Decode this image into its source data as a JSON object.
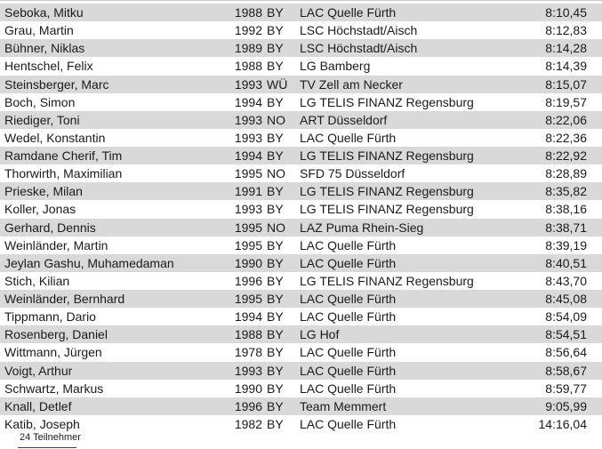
{
  "colors": {
    "row_shade": "#d9d9d9",
    "text": "#1a1a1a",
    "divider": "#c9c9c9"
  },
  "footer": {
    "participants_label": "24 Teilnehmer"
  },
  "results": {
    "columns": [
      "name",
      "year",
      "state",
      "club",
      "time"
    ],
    "rows": [
      {
        "name": "Seboka, Mitku",
        "year": "1988",
        "state": "BY",
        "club": "LAC Quelle Fürth",
        "time": "8:10,45"
      },
      {
        "name": "Grau, Martin",
        "year": "1992",
        "state": "BY",
        "club": "LSC Höchstadt/Aisch",
        "time": "8:12,83"
      },
      {
        "name": "Bühner, Niklas",
        "year": "1989",
        "state": "BY",
        "club": "LSC Höchstadt/Aisch",
        "time": "8:14,28"
      },
      {
        "name": "Hentschel, Felix",
        "year": "1988",
        "state": "BY",
        "club": "LG Bamberg",
        "time": "8:14,39"
      },
      {
        "name": "Steinsberger, Marc",
        "year": "1993",
        "state": "WÜ",
        "club": "TV Zell am Necker",
        "time": "8:15,07"
      },
      {
        "name": "Boch, Simon",
        "year": "1994",
        "state": "BY",
        "club": "LG TELIS FINANZ Regensburg",
        "time": "8:19,57"
      },
      {
        "name": "Riediger, Toni",
        "year": "1993",
        "state": "NO",
        "club": "ART Düsseldorf",
        "time": "8:22,06"
      },
      {
        "name": "Wedel, Konstantin",
        "year": "1993",
        "state": "BY",
        "club": "LAC Quelle Fürth",
        "time": "8:22,36"
      },
      {
        "name": "Ramdane Cherif, Tim",
        "year": "1994",
        "state": "BY",
        "club": "LG TELIS FINANZ Regensburg",
        "time": "8:22,92"
      },
      {
        "name": "Thorwirth, Maximilian",
        "year": "1995",
        "state": "NO",
        "club": "SFD 75 Düsseldorf",
        "time": "8:28,89"
      },
      {
        "name": "Prieske, Milan",
        "year": "1991",
        "state": "BY",
        "club": "LG TELIS FINANZ Regensburg",
        "time": "8:35,82"
      },
      {
        "name": "Koller, Jonas",
        "year": "1993",
        "state": "BY",
        "club": "LG TELIS FINANZ Regensburg",
        "time": "8:38,16"
      },
      {
        "name": "Gerhard, Dennis",
        "year": "1995",
        "state": "NO",
        "club": "LAZ Puma Rhein-Sieg",
        "time": "8:38,71"
      },
      {
        "name": "Weinländer, Martin",
        "year": "1995",
        "state": "BY",
        "club": "LAC Quelle Fürth",
        "time": "8:39,19"
      },
      {
        "name": "Jeylan Gashu, Muhamedaman",
        "year": "1990",
        "state": "BY",
        "club": "LAC Quelle Fürth",
        "time": "8:40,51"
      },
      {
        "name": "Stich, Kilian",
        "year": "1996",
        "state": "BY",
        "club": "LG TELIS FINANZ Regensburg",
        "time": "8:43,70"
      },
      {
        "name": "Weinländer, Bernhard",
        "year": "1995",
        "state": "BY",
        "club": "LAC Quelle Fürth",
        "time": "8:45,08"
      },
      {
        "name": "Tippmann, Dario",
        "year": "1994",
        "state": "BY",
        "club": "LAC Quelle Fürth",
        "time": "8:54,09"
      },
      {
        "name": "Rosenberg, Daniel",
        "year": "1988",
        "state": "BY",
        "club": "LG Hof",
        "time": "8:54,51"
      },
      {
        "name": "Wittmann, Jürgen",
        "year": "1978",
        "state": "BY",
        "club": "LAC Quelle Fürth",
        "time": "8:56,64"
      },
      {
        "name": "Voigt, Arthur",
        "year": "1993",
        "state": "BY",
        "club": "LAC Quelle Fürth",
        "time": "8:58,67"
      },
      {
        "name": "Schwartz, Markus",
        "year": "1990",
        "state": "BY",
        "club": "LAC Quelle Fürth",
        "time": "8:59,77"
      },
      {
        "name": "Knall, Detlef",
        "year": "1996",
        "state": "BY",
        "club": "Team Memmert",
        "time": "9:05,99"
      },
      {
        "name": "Katib, Joseph",
        "year": "1982",
        "state": "BY",
        "club": "LAC Quelle Fürth",
        "time": "14:16,04"
      }
    ]
  }
}
